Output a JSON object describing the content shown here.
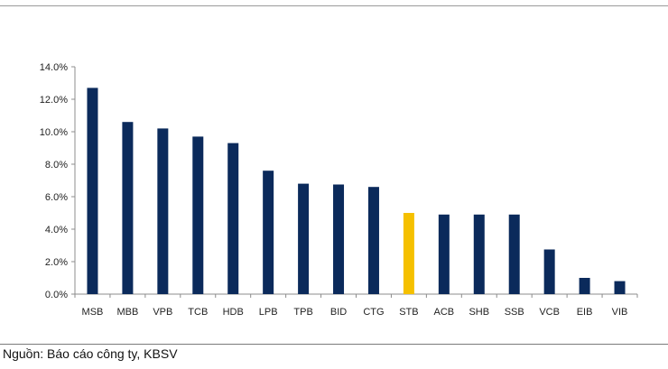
{
  "chart_data": {
    "type": "bar",
    "categories": [
      "MSB",
      "MBB",
      "VPB",
      "TCB",
      "HDB",
      "LPB",
      "TPB",
      "BID",
      "CTG",
      "STB",
      "ACB",
      "SHB",
      "SSB",
      "VCB",
      "EIB",
      "VIB"
    ],
    "values": [
      12.7,
      10.6,
      10.2,
      9.7,
      9.3,
      7.6,
      6.8,
      6.75,
      6.6,
      5.0,
      4.9,
      4.9,
      4.9,
      2.75,
      1.0,
      0.8
    ],
    "highlight_category": "STB",
    "ylim": [
      0,
      14
    ],
    "yticks": [
      0,
      2,
      4,
      6,
      8,
      10,
      12,
      14
    ],
    "ytick_labels": [
      "0.0%",
      "2.0%",
      "4.0%",
      "6.0%",
      "8.0%",
      "10.0%",
      "12.0%",
      "14.0%"
    ],
    "grid": false,
    "colors": {
      "bar": "#0b2a5b",
      "highlight": "#f5c000",
      "axis": "#8c8c8c"
    }
  },
  "source_text": "Nguồn: Báo cáo công ty, KBSV"
}
